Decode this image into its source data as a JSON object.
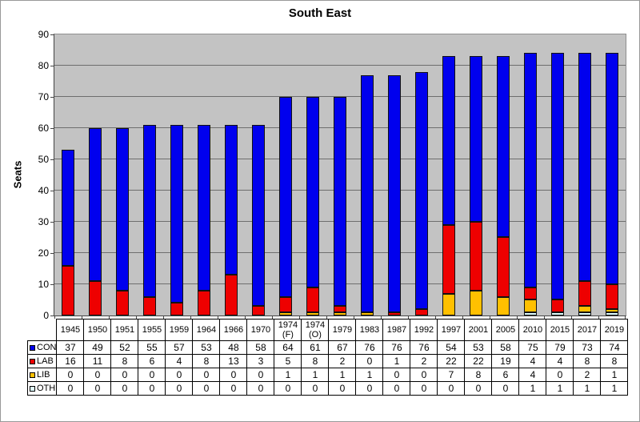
{
  "chart_data": {
    "type": "bar",
    "stacked": true,
    "title": "South East",
    "ylabel": "Seats",
    "ylim": [
      0,
      90
    ],
    "y_ticks": [
      0,
      10,
      20,
      30,
      40,
      50,
      60,
      70,
      80,
      90
    ],
    "grid": true,
    "plot_bg": "#c3c3c3",
    "legend_position": "table-left",
    "categories": [
      "1945",
      "1950",
      "1951",
      "1955",
      "1959",
      "1964",
      "1966",
      "1970",
      "1974 (F)",
      "1974 (O)",
      "1979",
      "1983",
      "1987",
      "1992",
      "1997",
      "2001",
      "2005",
      "2010",
      "2015",
      "2017",
      "2019"
    ],
    "series": [
      {
        "name": "CON",
        "color": "#0000ee",
        "values": [
          37,
          49,
          52,
          55,
          57,
          53,
          48,
          58,
          64,
          61,
          67,
          76,
          76,
          76,
          54,
          53,
          58,
          75,
          79,
          73,
          74
        ]
      },
      {
        "name": "LAB",
        "color": "#ee0000",
        "values": [
          16,
          11,
          8,
          6,
          4,
          8,
          13,
          3,
          5,
          8,
          2,
          0,
          1,
          2,
          22,
          22,
          19,
          4,
          4,
          8,
          8
        ]
      },
      {
        "name": "LIB",
        "color": "#ffc000",
        "values": [
          0,
          0,
          0,
          0,
          0,
          0,
          0,
          0,
          1,
          1,
          1,
          1,
          0,
          0,
          7,
          8,
          6,
          4,
          0,
          2,
          1
        ]
      },
      {
        "name": "OTH",
        "color": "#dffeff",
        "values": [
          0,
          0,
          0,
          0,
          0,
          0,
          0,
          0,
          0,
          0,
          0,
          0,
          0,
          0,
          0,
          0,
          0,
          1,
          1,
          1,
          1
        ]
      }
    ],
    "stack_order_bottom_to_top": [
      "OTH",
      "LIB",
      "LAB",
      "CON"
    ]
  }
}
